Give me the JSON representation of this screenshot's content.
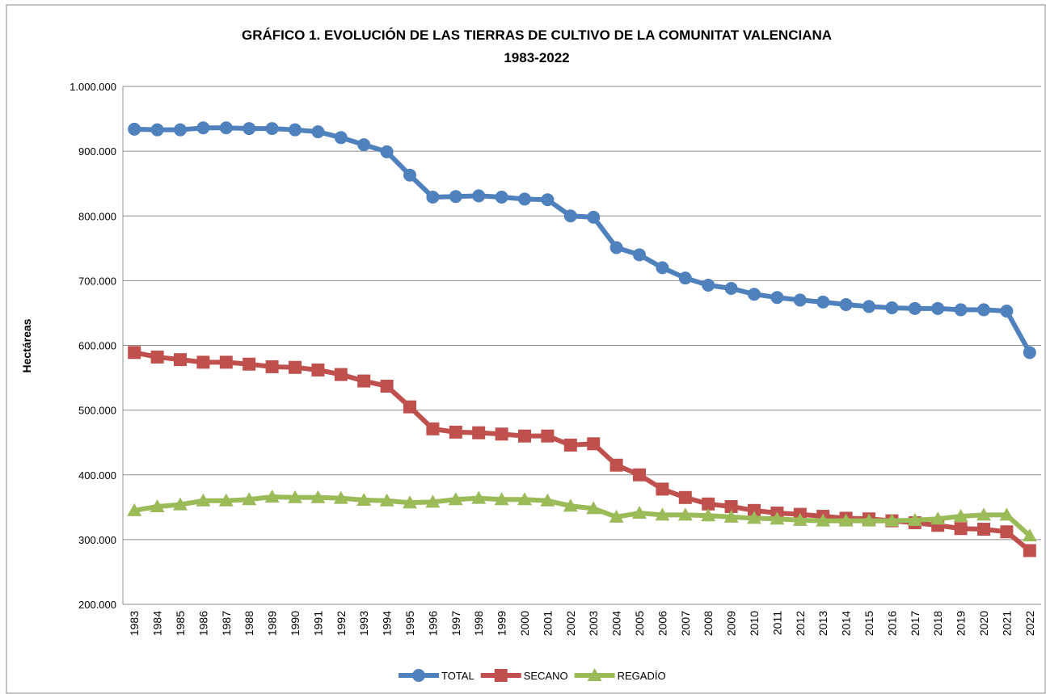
{
  "chart_data": {
    "type": "line",
    "title": [
      "GRÁFICO 1. EVOLUCIÓN DE LAS TIERRAS DE CULTIVO DE LA COMUNITAT VALENCIANA",
      "1983-2022"
    ],
    "y_label": "Hectáreas",
    "categories": [
      "1983",
      "1984",
      "1985",
      "1986",
      "1987",
      "1988",
      "1989",
      "1990",
      "1991",
      "1992",
      "1993",
      "1994",
      "1995",
      "1996",
      "1997",
      "1998",
      "1999",
      "2000",
      "2001",
      "2002",
      "2003",
      "2004",
      "2005",
      "2006",
      "2007",
      "2008",
      "2009",
      "2010",
      "2011",
      "2012",
      "2013",
      "2014",
      "2015",
      "2016",
      "2017",
      "2018",
      "2019",
      "2020",
      "2021",
      "2022"
    ],
    "series": [
      {
        "name": "TOTAL",
        "color": "#4f81bd",
        "marker": "circle",
        "values": [
          934000,
          933000,
          933000,
          936000,
          936000,
          935000,
          935000,
          933000,
          930000,
          921000,
          910000,
          899000,
          863000,
          829000,
          830000,
          831000,
          829000,
          826000,
          825000,
          800000,
          798000,
          751000,
          740000,
          720000,
          704000,
          693000,
          688000,
          679000,
          674000,
          670000,
          667000,
          663000,
          660000,
          658000,
          657000,
          657000,
          655000,
          655000,
          653000,
          589000
        ]
      },
      {
        "name": "SECANO",
        "color": "#c0504d",
        "marker": "square",
        "values": [
          589000,
          582000,
          578000,
          574000,
          574000,
          571000,
          567000,
          566000,
          562000,
          555000,
          545000,
          537000,
          505000,
          471000,
          466000,
          465000,
          463000,
          460000,
          460000,
          446000,
          448000,
          415000,
          400000,
          378000,
          365000,
          355000,
          351000,
          345000,
          341000,
          339000,
          336000,
          333000,
          332000,
          329000,
          326000,
          322000,
          317000,
          316000,
          312000,
          283000
        ]
      },
      {
        "name": "REGADÍO",
        "color": "#9bbb59",
        "marker": "triangle",
        "values": [
          345000,
          351000,
          354000,
          360000,
          360000,
          362000,
          366000,
          365000,
          365000,
          364000,
          361000,
          360000,
          357000,
          358000,
          362000,
          364000,
          362000,
          362000,
          360000,
          352000,
          348000,
          335000,
          341000,
          338000,
          338000,
          337000,
          335000,
          333000,
          332000,
          330000,
          329000,
          329000,
          329000,
          329000,
          330000,
          332000,
          336000,
          338000,
          338000,
          306000
        ]
      }
    ],
    "ylim": [
      200000,
      1000000
    ],
    "yticks": [
      {
        "value": 200000,
        "label": "200.000"
      },
      {
        "value": 300000,
        "label": "300.000"
      },
      {
        "value": 400000,
        "label": "400.000"
      },
      {
        "value": 500000,
        "label": "500.000"
      },
      {
        "value": 600000,
        "label": "600.000"
      },
      {
        "value": 700000,
        "label": "700.000"
      },
      {
        "value": 800000,
        "label": "800.000"
      },
      {
        "value": 900000,
        "label": "900.000"
      },
      {
        "value": 1000000,
        "label": "1.000.000"
      }
    ],
    "grid": true,
    "legend": "bottom"
  }
}
